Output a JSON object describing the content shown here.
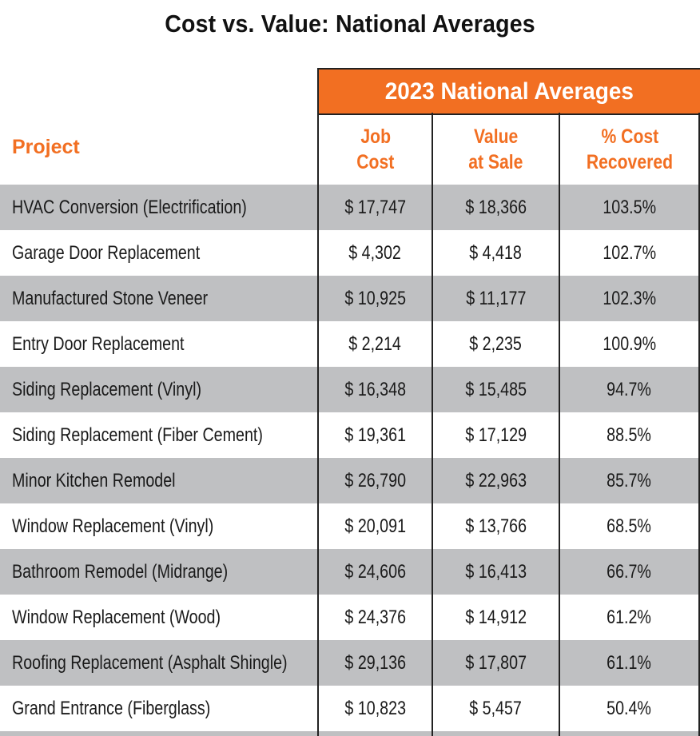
{
  "title": "Cost vs. Value: National Averages",
  "group_header": "2023 National Averages",
  "columns": {
    "project": "Project",
    "job_cost": [
      "Job",
      "Cost"
    ],
    "value_at_sale": [
      "Value",
      "at Sale"
    ],
    "cost_recovered": [
      "% Cost",
      "Recovered"
    ]
  },
  "colors": {
    "accent": "#f26f22",
    "row_shade": "#bfc0c2",
    "text": "#1a1a1a"
  },
  "rows": [
    {
      "project": "HVAC Conversion (Electrification)",
      "job_cost": "$ 17,747",
      "value_at_sale": "$ 18,366",
      "cost_recovered": "103.5%"
    },
    {
      "project": "Garage Door Replacement",
      "job_cost": "$ 4,302",
      "value_at_sale": "$ 4,418",
      "cost_recovered": "102.7%"
    },
    {
      "project": "Manufactured Stone Veneer",
      "job_cost": "$ 10,925",
      "value_at_sale": "$ 11,177",
      "cost_recovered": "102.3%"
    },
    {
      "project": "Entry Door Replacement",
      "job_cost": "$ 2,214",
      "value_at_sale": "$ 2,235",
      "cost_recovered": "100.9%"
    },
    {
      "project": "Siding Replacement (Vinyl)",
      "job_cost": "$ 16,348",
      "value_at_sale": "$ 15,485",
      "cost_recovered": "94.7%"
    },
    {
      "project": "Siding Replacement (Fiber Cement)",
      "job_cost": "$ 19,361",
      "value_at_sale": "$ 17,129",
      "cost_recovered": "88.5%"
    },
    {
      "project": "Minor Kitchen Remodel",
      "job_cost": "$ 26,790",
      "value_at_sale": "$ 22,963",
      "cost_recovered": "85.7%"
    },
    {
      "project": "Window Replacement (Vinyl)",
      "job_cost": "$ 20,091",
      "value_at_sale": "$ 13,766",
      "cost_recovered": "68.5%"
    },
    {
      "project": "Bathroom Remodel (Midrange)",
      "job_cost": "$ 24,606",
      "value_at_sale": "$ 16,413",
      "cost_recovered": "66.7%"
    },
    {
      "project": "Window Replacement (Wood)",
      "job_cost": "$ 24,376",
      "value_at_sale": "$ 14,912",
      "cost_recovered": "61.2%"
    },
    {
      "project": "Roofing Replacement (Asphalt Shingle)",
      "job_cost": "$ 29,136",
      "value_at_sale": "$ 17,807",
      "cost_recovered": "61.1%"
    },
    {
      "project": "Grand Entrance (Fiberglass)",
      "job_cost": "$ 10,823",
      "value_at_sale": "$ 5,457",
      "cost_recovered": "50.4%"
    }
  ]
}
